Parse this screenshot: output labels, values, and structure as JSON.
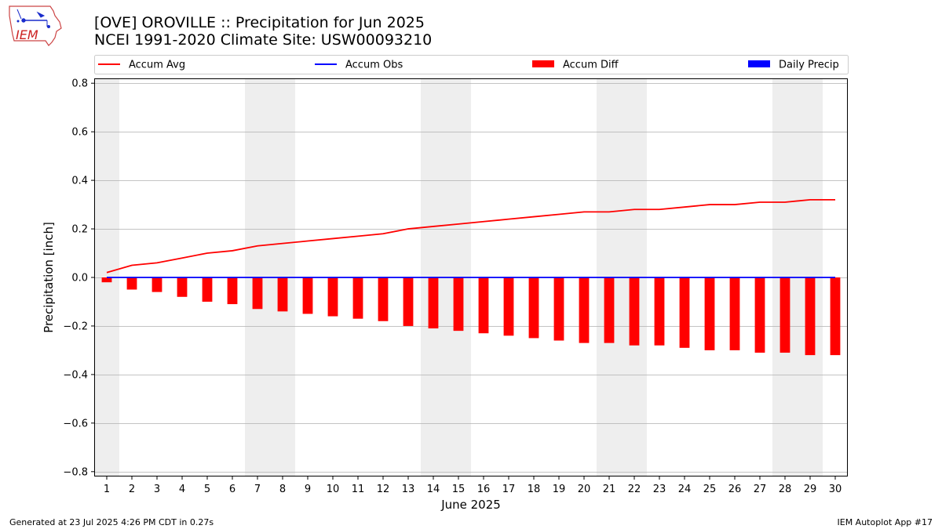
{
  "header": {
    "title_line1": "[OVE] OROVILLE :: Precipitation for Jun 2025",
    "title_line2": "NCEI 1991-2020 Climate Site: USW00093210",
    "logo_text": "IEM"
  },
  "footer": {
    "generated": "Generated at 23 Jul 2025 4:26 PM CDT in 0.27s",
    "app": "IEM Autoplot App #17"
  },
  "colors": {
    "accum_avg": "#ff0000",
    "accum_obs": "#0000ff",
    "accum_diff": "#ff0000",
    "daily_precip": "#0000ff",
    "weekend_shade": "#eeeeee",
    "grid": "#b0b0b0"
  },
  "chart_data": {
    "type": "bar",
    "xlabel": "June 2025",
    "ylabel": "Precipitation [inch]",
    "ylim": [
      -0.82,
      0.82
    ],
    "yticks": [
      -0.8,
      -0.6,
      -0.4,
      -0.2,
      0.0,
      0.2,
      0.4,
      0.6,
      0.8
    ],
    "ytick_labels": [
      "−0.8",
      "−0.6",
      "−0.4",
      "−0.2",
      "0.0",
      "0.2",
      "0.4",
      "0.6",
      "0.8"
    ],
    "grid": "horizontal",
    "legend_placement": "top",
    "legend": [
      "Accum Avg",
      "Accum Obs",
      "Accum Diff",
      "Daily Precip"
    ],
    "days": [
      1,
      2,
      3,
      4,
      5,
      6,
      7,
      8,
      9,
      10,
      11,
      12,
      13,
      14,
      15,
      16,
      17,
      18,
      19,
      20,
      21,
      22,
      23,
      24,
      25,
      26,
      27,
      28,
      29,
      30
    ],
    "shaded_days": [
      1,
      7,
      8,
      14,
      15,
      21,
      22,
      28,
      29
    ],
    "series": [
      {
        "name": "Accum Avg",
        "type": "line",
        "values": [
          0.02,
          0.05,
          0.06,
          0.08,
          0.1,
          0.11,
          0.13,
          0.14,
          0.15,
          0.16,
          0.17,
          0.18,
          0.2,
          0.21,
          0.22,
          0.23,
          0.24,
          0.25,
          0.26,
          0.27,
          0.27,
          0.28,
          0.28,
          0.29,
          0.3,
          0.3,
          0.31,
          0.31,
          0.32,
          0.32
        ]
      },
      {
        "name": "Accum Obs",
        "type": "line",
        "values": [
          0,
          0,
          0,
          0,
          0,
          0,
          0,
          0,
          0,
          0,
          0,
          0,
          0,
          0,
          0,
          0,
          0,
          0,
          0,
          0,
          0,
          0,
          0,
          0,
          0,
          0,
          0,
          0,
          0,
          0
        ]
      },
      {
        "name": "Accum Diff",
        "type": "bar",
        "values": [
          -0.02,
          -0.05,
          -0.06,
          -0.08,
          -0.1,
          -0.11,
          -0.13,
          -0.14,
          -0.15,
          -0.16,
          -0.17,
          -0.18,
          -0.2,
          -0.21,
          -0.22,
          -0.23,
          -0.24,
          -0.25,
          -0.26,
          -0.27,
          -0.27,
          -0.28,
          -0.28,
          -0.29,
          -0.3,
          -0.3,
          -0.31,
          -0.31,
          -0.32,
          -0.32
        ]
      },
      {
        "name": "Daily Precip",
        "type": "bar",
        "values": [
          0,
          0,
          0,
          0,
          0,
          0,
          0,
          0,
          0,
          0,
          0,
          0,
          0,
          0,
          0,
          0,
          0,
          0,
          0,
          0,
          0,
          0,
          0,
          0,
          0,
          0,
          0,
          0,
          0,
          0
        ]
      }
    ]
  }
}
